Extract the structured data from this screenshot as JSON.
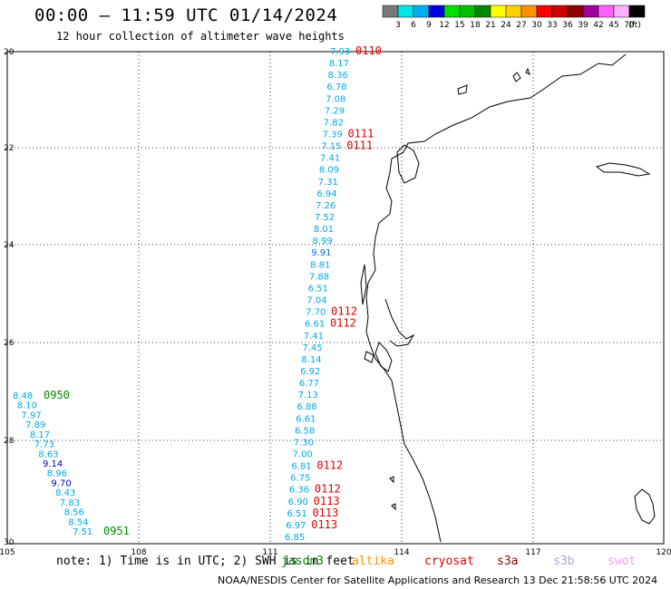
{
  "title": "00:00 – 11:59 UTC 01/14/2024",
  "subtitle": "12 hour collection of altimeter wave heights",
  "colorbar": {
    "unit": "(ft)",
    "colors": [
      "#7a7a7a",
      "#00e4e4",
      "#00b0f0",
      "#0000e0",
      "#00e000",
      "#00c000",
      "#008800",
      "#ffff00",
      "#ffd000",
      "#ff9000",
      "#ff0000",
      "#d00000",
      "#900000",
      "#a000a0",
      "#ff60ff",
      "#ffb0ff",
      "#000000"
    ],
    "labels": [
      "3",
      "6",
      "9",
      "12",
      "15",
      "18",
      "21",
      "24",
      "27",
      "30",
      "33",
      "36",
      "39",
      "42",
      "45",
      "70"
    ]
  },
  "axes": {
    "lat_labels": [
      "20",
      "22",
      "24",
      "26",
      "28",
      "30"
    ],
    "lon_labels": [
      "105",
      "108",
      "111",
      "114",
      "117",
      "120"
    ]
  },
  "wave_colors": {
    "light": "#00a8e8",
    "mid": "#0070e0",
    "dark": "#0000b8"
  },
  "track_a": {
    "times": [
      "0110",
      "0111",
      "0111",
      "0112",
      "0112",
      "0112",
      "0112",
      "0113",
      "0113",
      "0113"
    ],
    "values": [
      {
        "v": "7.93",
        "c": "light"
      },
      {
        "v": "8.17",
        "c": "light"
      },
      {
        "v": "8.36",
        "c": "light"
      },
      {
        "v": "6.78",
        "c": "light"
      },
      {
        "v": "7.08",
        "c": "light"
      },
      {
        "v": "7.29",
        "c": "light"
      },
      {
        "v": "7.82",
        "c": "light"
      },
      {
        "v": "7.39",
        "c": "light"
      },
      {
        "v": "7.15",
        "c": "light"
      },
      {
        "v": "7.41",
        "c": "light"
      },
      {
        "v": "8.09",
        "c": "light"
      },
      {
        "v": "7.31",
        "c": "light"
      },
      {
        "v": "6.94",
        "c": "light"
      },
      {
        "v": "7.26",
        "c": "light"
      },
      {
        "v": "7.52",
        "c": "light"
      },
      {
        "v": "8.01",
        "c": "light"
      },
      {
        "v": "8.99",
        "c": "light"
      },
      {
        "v": "9.91",
        "c": "mid"
      },
      {
        "v": "8.81",
        "c": "light"
      },
      {
        "v": "7.88",
        "c": "light"
      },
      {
        "v": "6.51",
        "c": "light"
      },
      {
        "v": "7.04",
        "c": "light"
      },
      {
        "v": "7.70",
        "c": "light"
      },
      {
        "v": "6.61",
        "c": "light"
      },
      {
        "v": "7.41",
        "c": "light"
      },
      {
        "v": "7.45",
        "c": "light"
      },
      {
        "v": "8.14",
        "c": "light"
      },
      {
        "v": "6.92",
        "c": "light"
      },
      {
        "v": "6.77",
        "c": "light"
      },
      {
        "v": "7.13",
        "c": "light"
      },
      {
        "v": "6.88",
        "c": "light"
      },
      {
        "v": "6.61",
        "c": "light"
      },
      {
        "v": "6.58",
        "c": "light"
      },
      {
        "v": "7.30",
        "c": "light"
      },
      {
        "v": "7.00",
        "c": "light"
      },
      {
        "v": "6.81",
        "c": "light"
      },
      {
        "v": "6.75",
        "c": "light"
      },
      {
        "v": "6.36",
        "c": "light"
      },
      {
        "v": "6.90",
        "c": "light"
      },
      {
        "v": "6.51",
        "c": "light"
      },
      {
        "v": "6.97",
        "c": "light"
      },
      {
        "v": "6.85",
        "c": "light"
      }
    ]
  },
  "track_b": {
    "times": [
      "0950",
      "0951"
    ],
    "values": [
      {
        "v": "8.48",
        "c": "light"
      },
      {
        "v": "8.10",
        "c": "light"
      },
      {
        "v": "7.97",
        "c": "light"
      },
      {
        "v": "7.89",
        "c": "light"
      },
      {
        "v": "8.17",
        "c": "light"
      },
      {
        "v": "7.73",
        "c": "light"
      },
      {
        "v": "8.63",
        "c": "light"
      },
      {
        "v": "9.14",
        "c": "dark"
      },
      {
        "v": "8.96",
        "c": "light"
      },
      {
        "v": "9.70",
        "c": "dark"
      },
      {
        "v": "8.43",
        "c": "light"
      },
      {
        "v": "7.83",
        "c": "light"
      },
      {
        "v": "8.56",
        "c": "light"
      },
      {
        "v": "8.54",
        "c": "light"
      },
      {
        "v": "7.51",
        "c": "light"
      }
    ]
  },
  "time_colors": {
    "red": "#e00000",
    "green": "#008800"
  },
  "note": "note: 1) Time is in UTC; 2) SWH is in feet",
  "missions": [
    {
      "name": "jason3",
      "color": "#008800"
    },
    {
      "name": "altika",
      "color": "#ff9000"
    },
    {
      "name": "cryosat",
      "color": "#e00000"
    },
    {
      "name": "s3a",
      "color": "#900000"
    },
    {
      "name": "s3b",
      "color": "#b0a0e0"
    },
    {
      "name": "swot",
      "color": "#f0a0f0"
    }
  ],
  "credit": "NOAA/NESDIS Center for Satellite Applications and Research    13 Dec 21:58:56 UTC 2024"
}
